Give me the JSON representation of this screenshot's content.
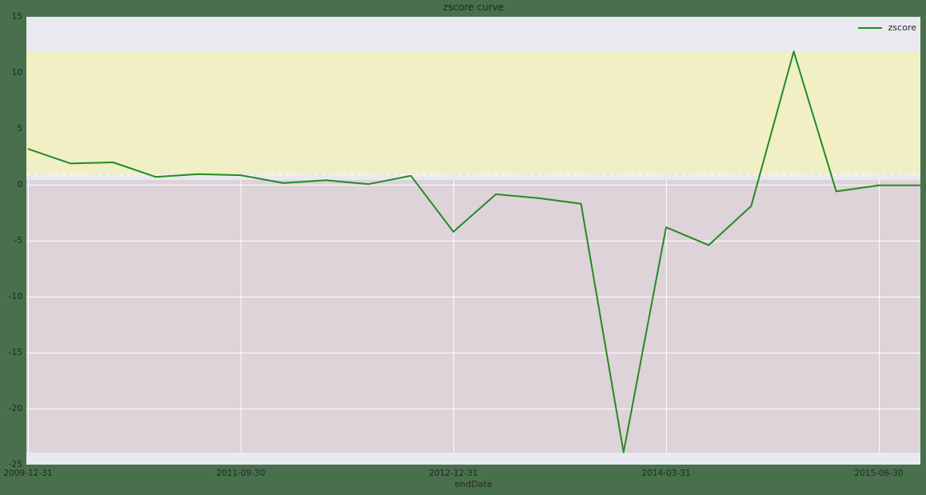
{
  "chart_data": {
    "type": "line",
    "title": "zscore curve",
    "xlabel": "endDate",
    "ylabel": "",
    "ylim": [
      -25,
      15
    ],
    "y_ticks": [
      15,
      10,
      5,
      0,
      -5,
      -10,
      -15,
      -20,
      -25
    ],
    "x_tick_labels": [
      "2009-12-31",
      "2011-09-30",
      "2012-12-31",
      "2014-03-31",
      "2015-06-30"
    ],
    "x_tick_indices": [
      0,
      5,
      10,
      15,
      20
    ],
    "n_points": 22,
    "series": [
      {
        "name": "zscore",
        "color": "#228B22",
        "values": [
          3.2,
          1.9,
          2.0,
          0.7,
          0.95,
          0.85,
          0.15,
          0.4,
          0.05,
          0.8,
          -4.2,
          -0.85,
          -1.2,
          -1.7,
          -23.9,
          -3.8,
          -5.4,
          -1.9,
          11.9,
          -0.6,
          -0.05,
          -0.05
        ]
      }
    ],
    "legend": {
      "entries": [
        "zscore"
      ],
      "position": "upper right"
    },
    "bands": [
      {
        "name": "upper-band",
        "color": "#f0efc6",
        "from": 0.95,
        "to": 11.85
      },
      {
        "name": "lower-band",
        "color": "#ded3d9",
        "from": -23.9,
        "to": 0.4
      }
    ],
    "threshold_line": {
      "value": 0.95,
      "color": "#ffffff",
      "style": "dashed"
    },
    "grid": true
  },
  "colors": {
    "figure_background": "#48704c",
    "plot_background": "#e9e9f0",
    "grid_line": "#ffffff",
    "text": "#262626"
  }
}
